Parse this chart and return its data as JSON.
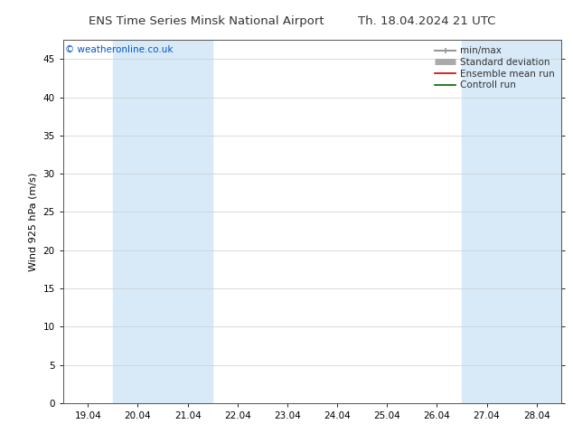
{
  "title_left": "ENS Time Series Minsk National Airport",
  "title_right": "Th. 18.04.2024 21 UTC",
  "ylabel": "Wind 925 hPa (m/s)",
  "watermark": "© weatheronline.co.uk",
  "watermark_color": "#0055cc",
  "ylim": [
    0,
    47.5
  ],
  "yticks": [
    0,
    5,
    10,
    15,
    20,
    25,
    30,
    35,
    40,
    45
  ],
  "xtick_labels": [
    "19.04",
    "20.04",
    "21.04",
    "22.04",
    "23.04",
    "24.04",
    "25.04",
    "26.04",
    "27.04",
    "28.04"
  ],
  "xtick_positions": [
    0,
    1,
    2,
    3,
    4,
    5,
    6,
    7,
    8,
    9
  ],
  "xmin": -0.5,
  "xmax": 9.5,
  "bg_color": "#ffffff",
  "plot_bg_color": "#ffffff",
  "shaded_bands": [
    [
      0.5,
      1.5
    ],
    [
      1.5,
      2.5
    ],
    [
      7.5,
      8.5
    ],
    [
      8.5,
      9.5
    ]
  ],
  "shade_color": "#d8eaf8",
  "grid_color": "#cccccc",
  "legend_items": [
    {
      "label": "min/max",
      "color": "#999999",
      "lw": 1.5
    },
    {
      "label": "Standard deviation",
      "color": "#aaaaaa",
      "lw": 5
    },
    {
      "label": "Ensemble mean run",
      "color": "#cc0000",
      "lw": 1.2
    },
    {
      "label": "Controll run",
      "color": "#006600",
      "lw": 1.2
    }
  ],
  "title_fontsize": 9.5,
  "tick_fontsize": 7.5,
  "ylabel_fontsize": 8,
  "watermark_fontsize": 7.5,
  "legend_fontsize": 7.5
}
